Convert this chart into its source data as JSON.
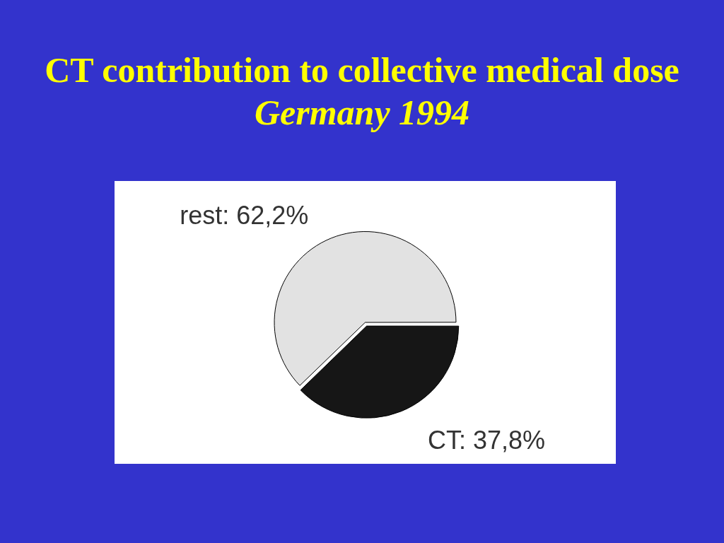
{
  "chart_data": {
    "type": "pie",
    "title": "CT contribution to collective medical dose",
    "subtitle": "Germany 1994",
    "categories": [
      "rest",
      "CT"
    ],
    "values": [
      62.2,
      37.8
    ],
    "colors": [
      "#e2e2e2",
      "#161616"
    ],
    "value_labels": [
      "62,2%",
      "37,8%"
    ],
    "legend": false
  }
}
